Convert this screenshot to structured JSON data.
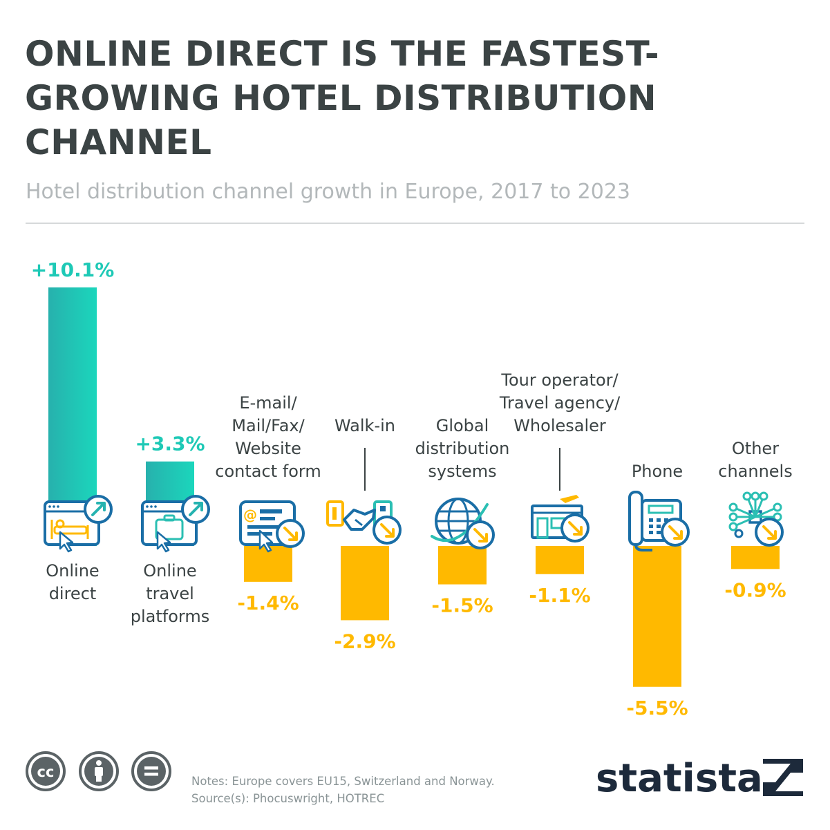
{
  "header": {
    "title": "ONLINE DIRECT IS THE FASTEST-GROWING HOTEL DISTRIBUTION CHANNEL",
    "subtitle": "Hotel distribution channel growth in Europe, 2017 to 2023"
  },
  "chart_data": {
    "type": "bar",
    "title": "ONLINE DIRECT IS THE FASTEST-GROWING HOTEL DISTRIBUTION CHANNEL",
    "subtitle": "Hotel distribution channel growth in Europe, 2017 to 2023",
    "xlabel": "",
    "ylabel": "",
    "categories": [
      "Online direct",
      "Online travel platforms",
      "E-mail/ Mail/Fax/ Website contact form",
      "Walk-in",
      "Global distribution systems",
      "Tour operator/ Travel agency/ Wholesaler",
      "Phone",
      "Other channels"
    ],
    "values": [
      10.1,
      3.3,
      -1.4,
      -2.9,
      -1.5,
      -1.1,
      -5.5,
      -0.9
    ],
    "value_labels": [
      "+10.1%",
      "+3.3%",
      "-1.4%",
      "-2.9%",
      "-1.5%",
      "-1.1%",
      "-5.5%",
      "-0.9%"
    ],
    "label_lines": [
      [
        "Online",
        "direct"
      ],
      [
        "Online",
        "travel",
        "platforms"
      ],
      [
        "E-mail/",
        "Mail/Fax/",
        "Website",
        "contact form"
      ],
      [
        "Walk-in"
      ],
      [
        "Global",
        "distribution",
        "systems"
      ],
      [
        "Tour operator/",
        "Travel agency/",
        "Wholesaler"
      ],
      [
        "Phone"
      ],
      [
        "Other",
        "channels"
      ]
    ],
    "icons": [
      "hotel-booking-icon",
      "travel-platform-icon",
      "email-form-icon",
      "handshake-icon",
      "globe-icon",
      "travel-agency-icon",
      "telephone-icon",
      "network-icon"
    ],
    "unit": "%",
    "grid": false,
    "legend": "none",
    "colors": {
      "positive": "#1fd0b8",
      "positive_dark": "#25b3b0",
      "negative": "#ffb900",
      "icon": "#1a6ea6"
    }
  },
  "footer": {
    "notes": "Notes: Europe covers EU15, Switzerland and Norway.",
    "source": "Source(s): Phocuswright, HOTREC",
    "brand": "statista"
  }
}
